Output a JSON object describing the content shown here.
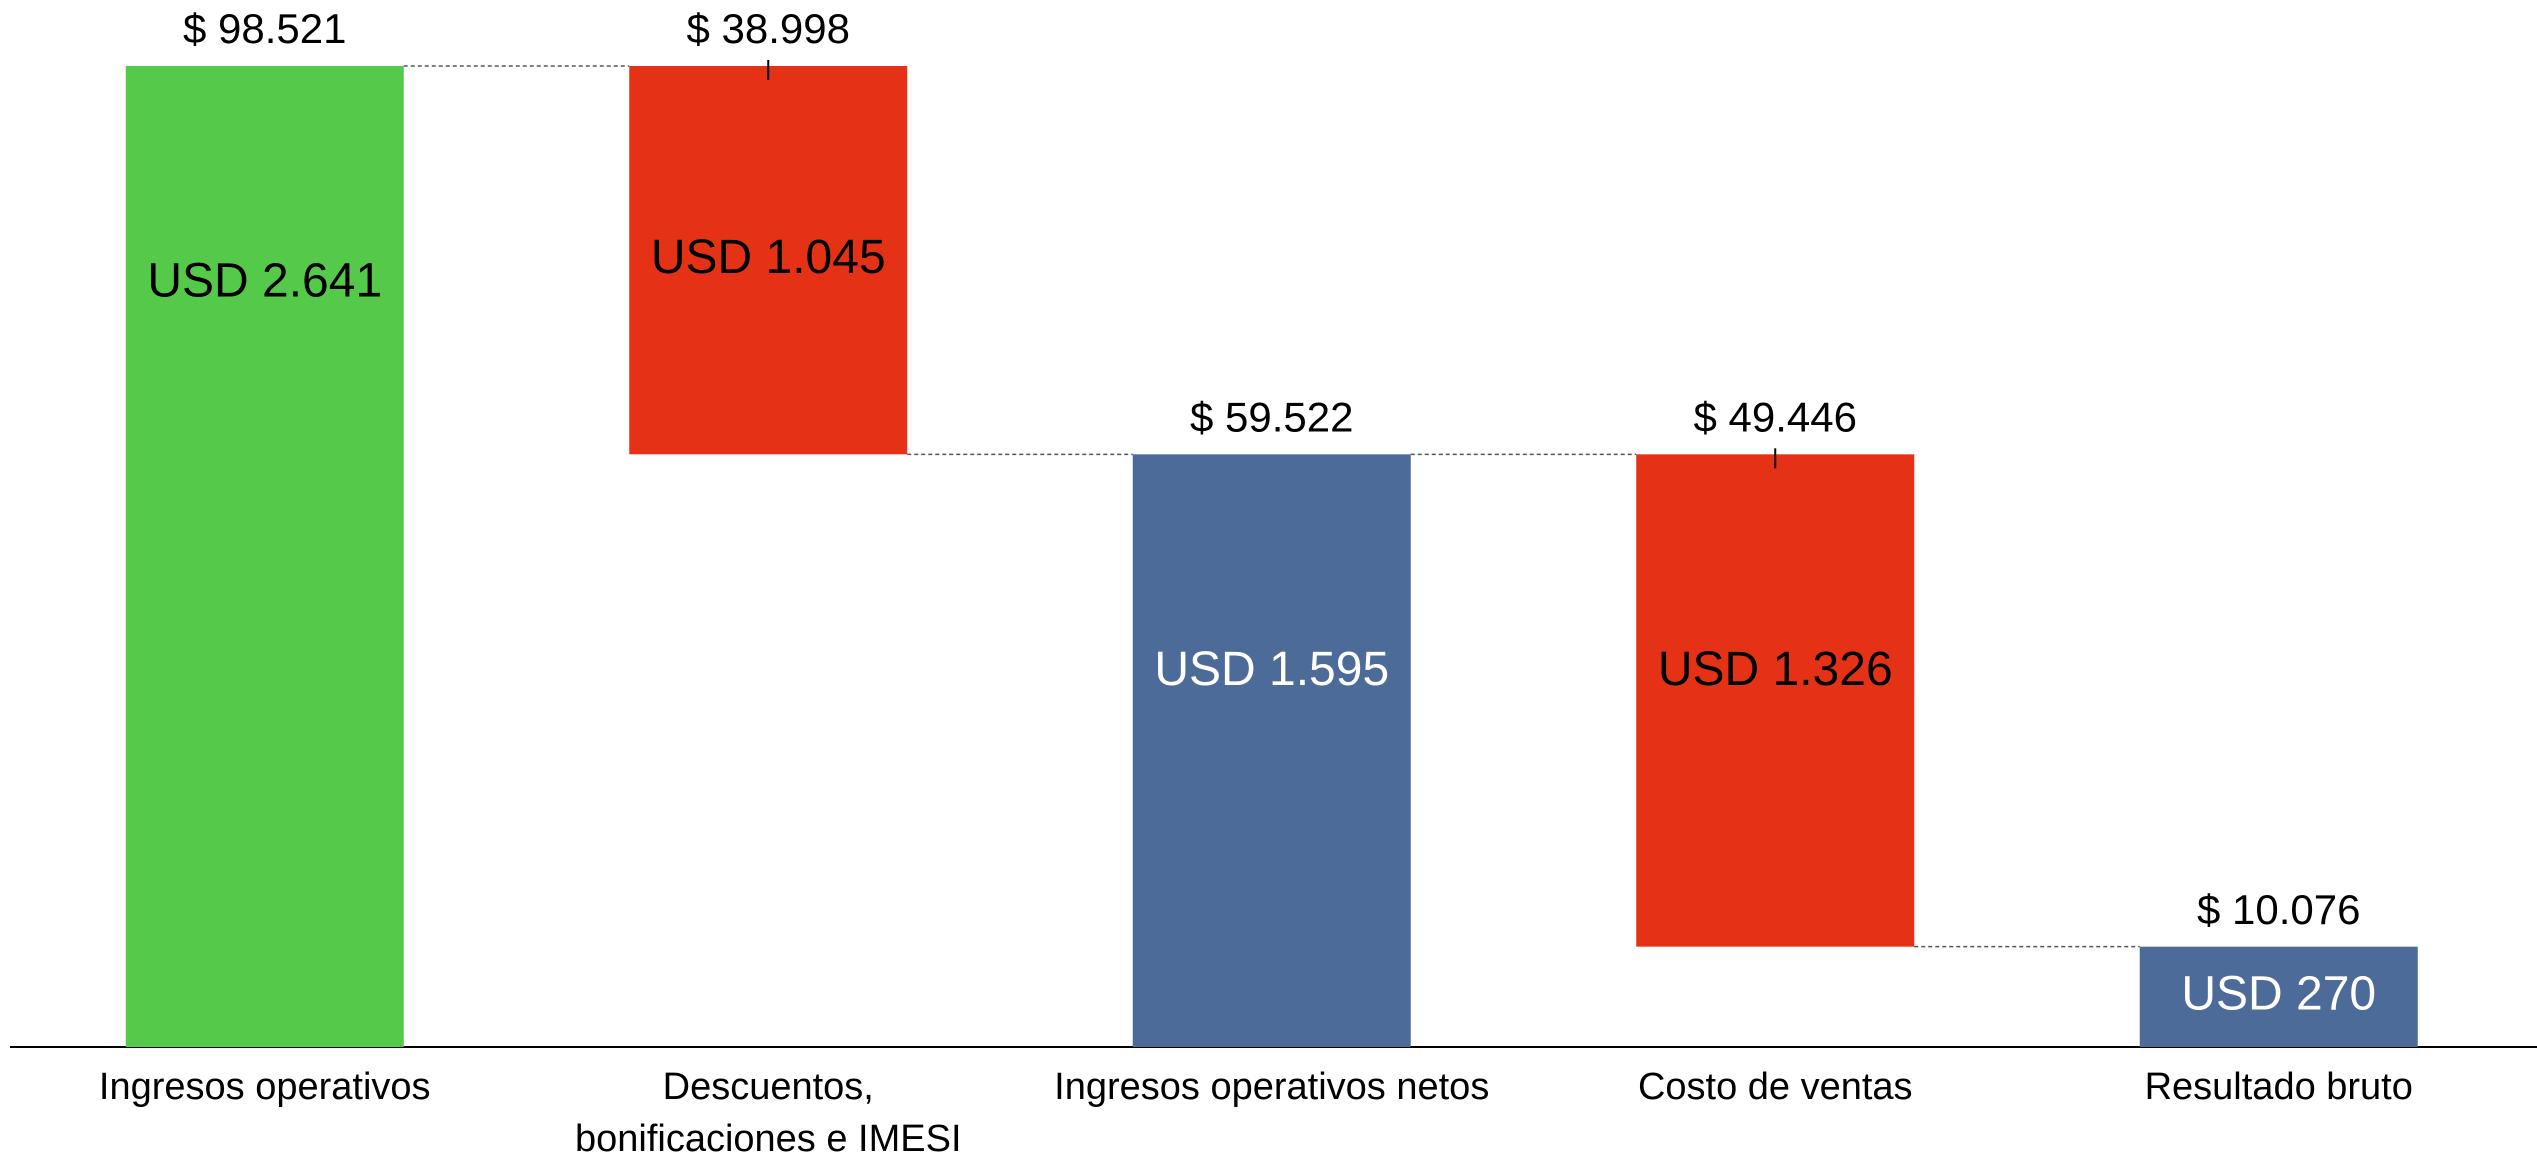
{
  "chart_data": {
    "type": "waterfall",
    "categories": [
      "Ingresos operativos",
      "Descuentos,\nbonificaciones e IMESI",
      "Ingresos operativos netos",
      "Costo de ventas",
      "Resultado bruto"
    ],
    "values": [
      98521,
      38998,
      59522,
      49446,
      10076
    ],
    "value_labels": [
      "$ 98.521",
      "$ 38.998",
      "$ 59.522",
      "$ 49.446",
      "$ 10.076"
    ],
    "usd_values": [
      2641,
      1045,
      1595,
      1326,
      270
    ],
    "usd_value_labels": [
      "USD 2.641",
      "USD 1.045",
      "USD 1.595",
      "USD 1.326",
      "USD 270"
    ],
    "measures": [
      "total",
      "decrease",
      "total",
      "decrease",
      "total"
    ],
    "colors": [
      "#54c94a",
      "#e53216",
      "#4d6b99",
      "#e53216",
      "#4d6b99"
    ],
    "label_colors": [
      "#000000",
      "#000000",
      "#ffffff",
      "#000000",
      "#ffffff"
    ]
  }
}
